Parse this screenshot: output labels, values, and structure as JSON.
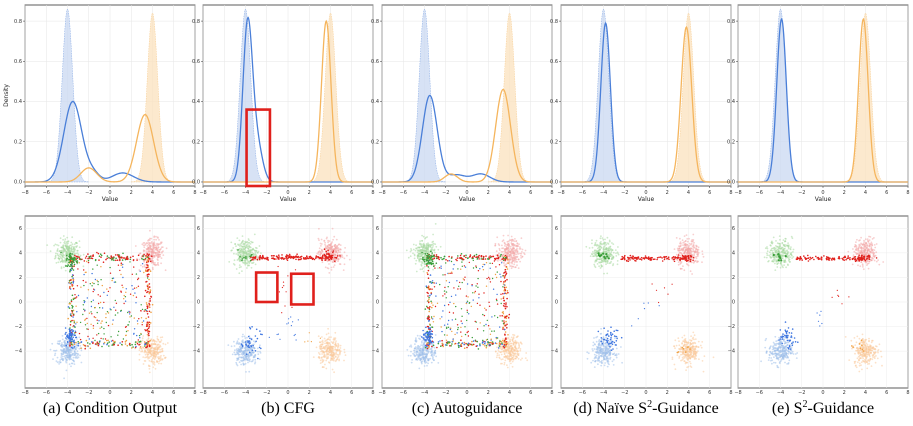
{
  "chart_data": {
    "type": "figure",
    "colors": {
      "blue": "#4a7fd8",
      "orange": "#f5b55d",
      "blue_fill": "#c9d8f2",
      "orange_fill": "#fbe1bd",
      "green_cloud": "#a8d8a0",
      "red_cloud": "#f3a8a8",
      "blue_cloud": "#9fc0ea",
      "orange_cloud": "#f9c89a",
      "red_sample": "#e0201c",
      "green_sample": "#3a9e3a",
      "blue_sample": "#3f76e0",
      "orange_sample": "#f0a040",
      "highlight": "#e0201c"
    },
    "density_common": {
      "xlabel": "Value",
      "ylabel": "Density",
      "xlim": [
        -8,
        8
      ],
      "ylim": [
        -0.02,
        0.88
      ],
      "xticks": [
        -8,
        -6,
        -4,
        -2,
        0,
        2,
        4,
        6,
        8
      ],
      "yticks": [
        0.0,
        0.2,
        0.4,
        0.6,
        0.8
      ],
      "ytick_labels": [
        "0.0",
        "0.2",
        "0.4",
        "0.6",
        "0.8"
      ],
      "target": [
        {
          "name": "class-blue",
          "mean": -4,
          "std": 0.5,
          "amp": 0.86
        },
        {
          "name": "class-orange",
          "mean": 4,
          "std": 0.5,
          "amp": 0.84
        }
      ]
    },
    "scatter_common": {
      "xlim": [
        -8,
        8
      ],
      "ylim": [
        -7,
        7
      ],
      "xticks": [
        -8,
        -6,
        -4,
        -2,
        0,
        2,
        4,
        6,
        8
      ],
      "yticks": [
        -4,
        -2,
        0,
        2,
        4,
        6
      ],
      "centers": [
        {
          "name": "green",
          "x": -4,
          "y": 4
        },
        {
          "name": "red",
          "x": 4,
          "y": 4
        },
        {
          "name": "blue",
          "x": -4,
          "y": -4
        },
        {
          "name": "orange",
          "x": 4,
          "y": -4
        }
      ]
    },
    "panels": [
      {
        "caption": "(a) Condition Output",
        "density_curves": [
          {
            "name": "blue",
            "components": [
              {
                "mean": -3.5,
                "std": 0.85,
                "amp": 0.4
              },
              {
                "mean": -1.6,
                "std": 0.6,
                "amp": 0.04
              },
              {
                "mean": 1.2,
                "std": 1.0,
                "amp": 0.045
              }
            ]
          },
          {
            "name": "orange",
            "components": [
              {
                "mean": 3.3,
                "std": 0.8,
                "amp": 0.335
              },
              {
                "mean": -2.0,
                "std": 0.75,
                "amp": 0.07
              }
            ]
          }
        ],
        "scatter_pattern": "square",
        "highlights": []
      },
      {
        "caption": "(b) CFG",
        "density_curves": [
          {
            "name": "blue",
            "components": [
              {
                "mean": -3.8,
                "std": 0.45,
                "amp": 0.78
              },
              {
                "mean": -2.9,
                "std": 0.5,
                "amp": 0.18
              }
            ]
          },
          {
            "name": "orange",
            "components": [
              {
                "mean": 3.6,
                "std": 0.45,
                "amp": 0.8
              }
            ]
          }
        ],
        "scatter_pattern": "cfg",
        "highlights": [
          "density-box",
          "scatter-box-1",
          "scatter-box-2"
        ]
      },
      {
        "caption": "(c) Autoguidance",
        "density_curves": [
          {
            "name": "blue",
            "components": [
              {
                "mean": -3.5,
                "std": 0.7,
                "amp": 0.43
              },
              {
                "mean": -1.0,
                "std": 0.8,
                "amp": 0.035
              },
              {
                "mean": 1.3,
                "std": 0.85,
                "amp": 0.04
              }
            ]
          },
          {
            "name": "orange",
            "components": [
              {
                "mean": 3.4,
                "std": 0.7,
                "amp": 0.46
              },
              {
                "mean": -1.5,
                "std": 0.6,
                "amp": 0.04
              }
            ]
          }
        ],
        "scatter_pattern": "square",
        "highlights": []
      },
      {
        "caption": "(d) Naïve S",
        "caption_sup": "2",
        "caption_tail": "-Guidance",
        "density_curves": [
          {
            "name": "blue",
            "components": [
              {
                "mean": -3.8,
                "std": 0.45,
                "amp": 0.79
              }
            ]
          },
          {
            "name": "orange",
            "components": [
              {
                "mean": 3.8,
                "std": 0.5,
                "amp": 0.77
              }
            ]
          }
        ],
        "scatter_pattern": "s2",
        "highlights": []
      },
      {
        "caption": "(e) S",
        "caption_sup": "2",
        "caption_tail": "-Guidance",
        "density_curves": [
          {
            "name": "blue",
            "components": [
              {
                "mean": -3.9,
                "std": 0.45,
                "amp": 0.81
              }
            ]
          },
          {
            "name": "orange",
            "components": [
              {
                "mean": 3.8,
                "std": 0.45,
                "amp": 0.81
              }
            ]
          }
        ],
        "scatter_pattern": "s2",
        "highlights": []
      }
    ]
  }
}
